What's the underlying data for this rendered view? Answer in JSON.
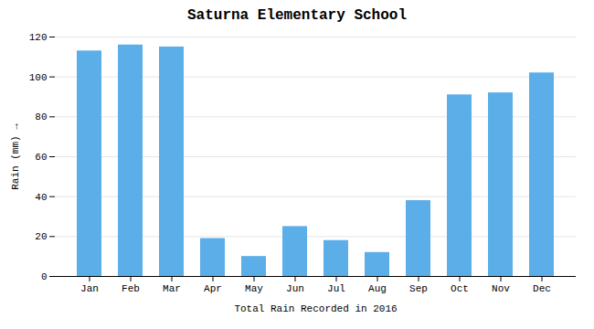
{
  "chart_data": {
    "type": "bar",
    "title": "Saturna Elementary School",
    "xlabel": "Total Rain Recorded in 2016",
    "ylabel": "Rain (mm)",
    "categories": [
      "Jan",
      "Feb",
      "Mar",
      "Apr",
      "May",
      "Jun",
      "Jul",
      "Aug",
      "Sep",
      "Oct",
      "Nov",
      "Dec"
    ],
    "values": [
      113,
      116,
      115,
      19,
      10,
      25,
      18,
      12,
      38,
      91,
      92,
      102
    ],
    "color": "#5BAEE8",
    "ylim": [
      0,
      120
    ],
    "yticks": [
      0,
      20,
      40,
      60,
      80,
      100,
      120
    ],
    "grid": true
  }
}
